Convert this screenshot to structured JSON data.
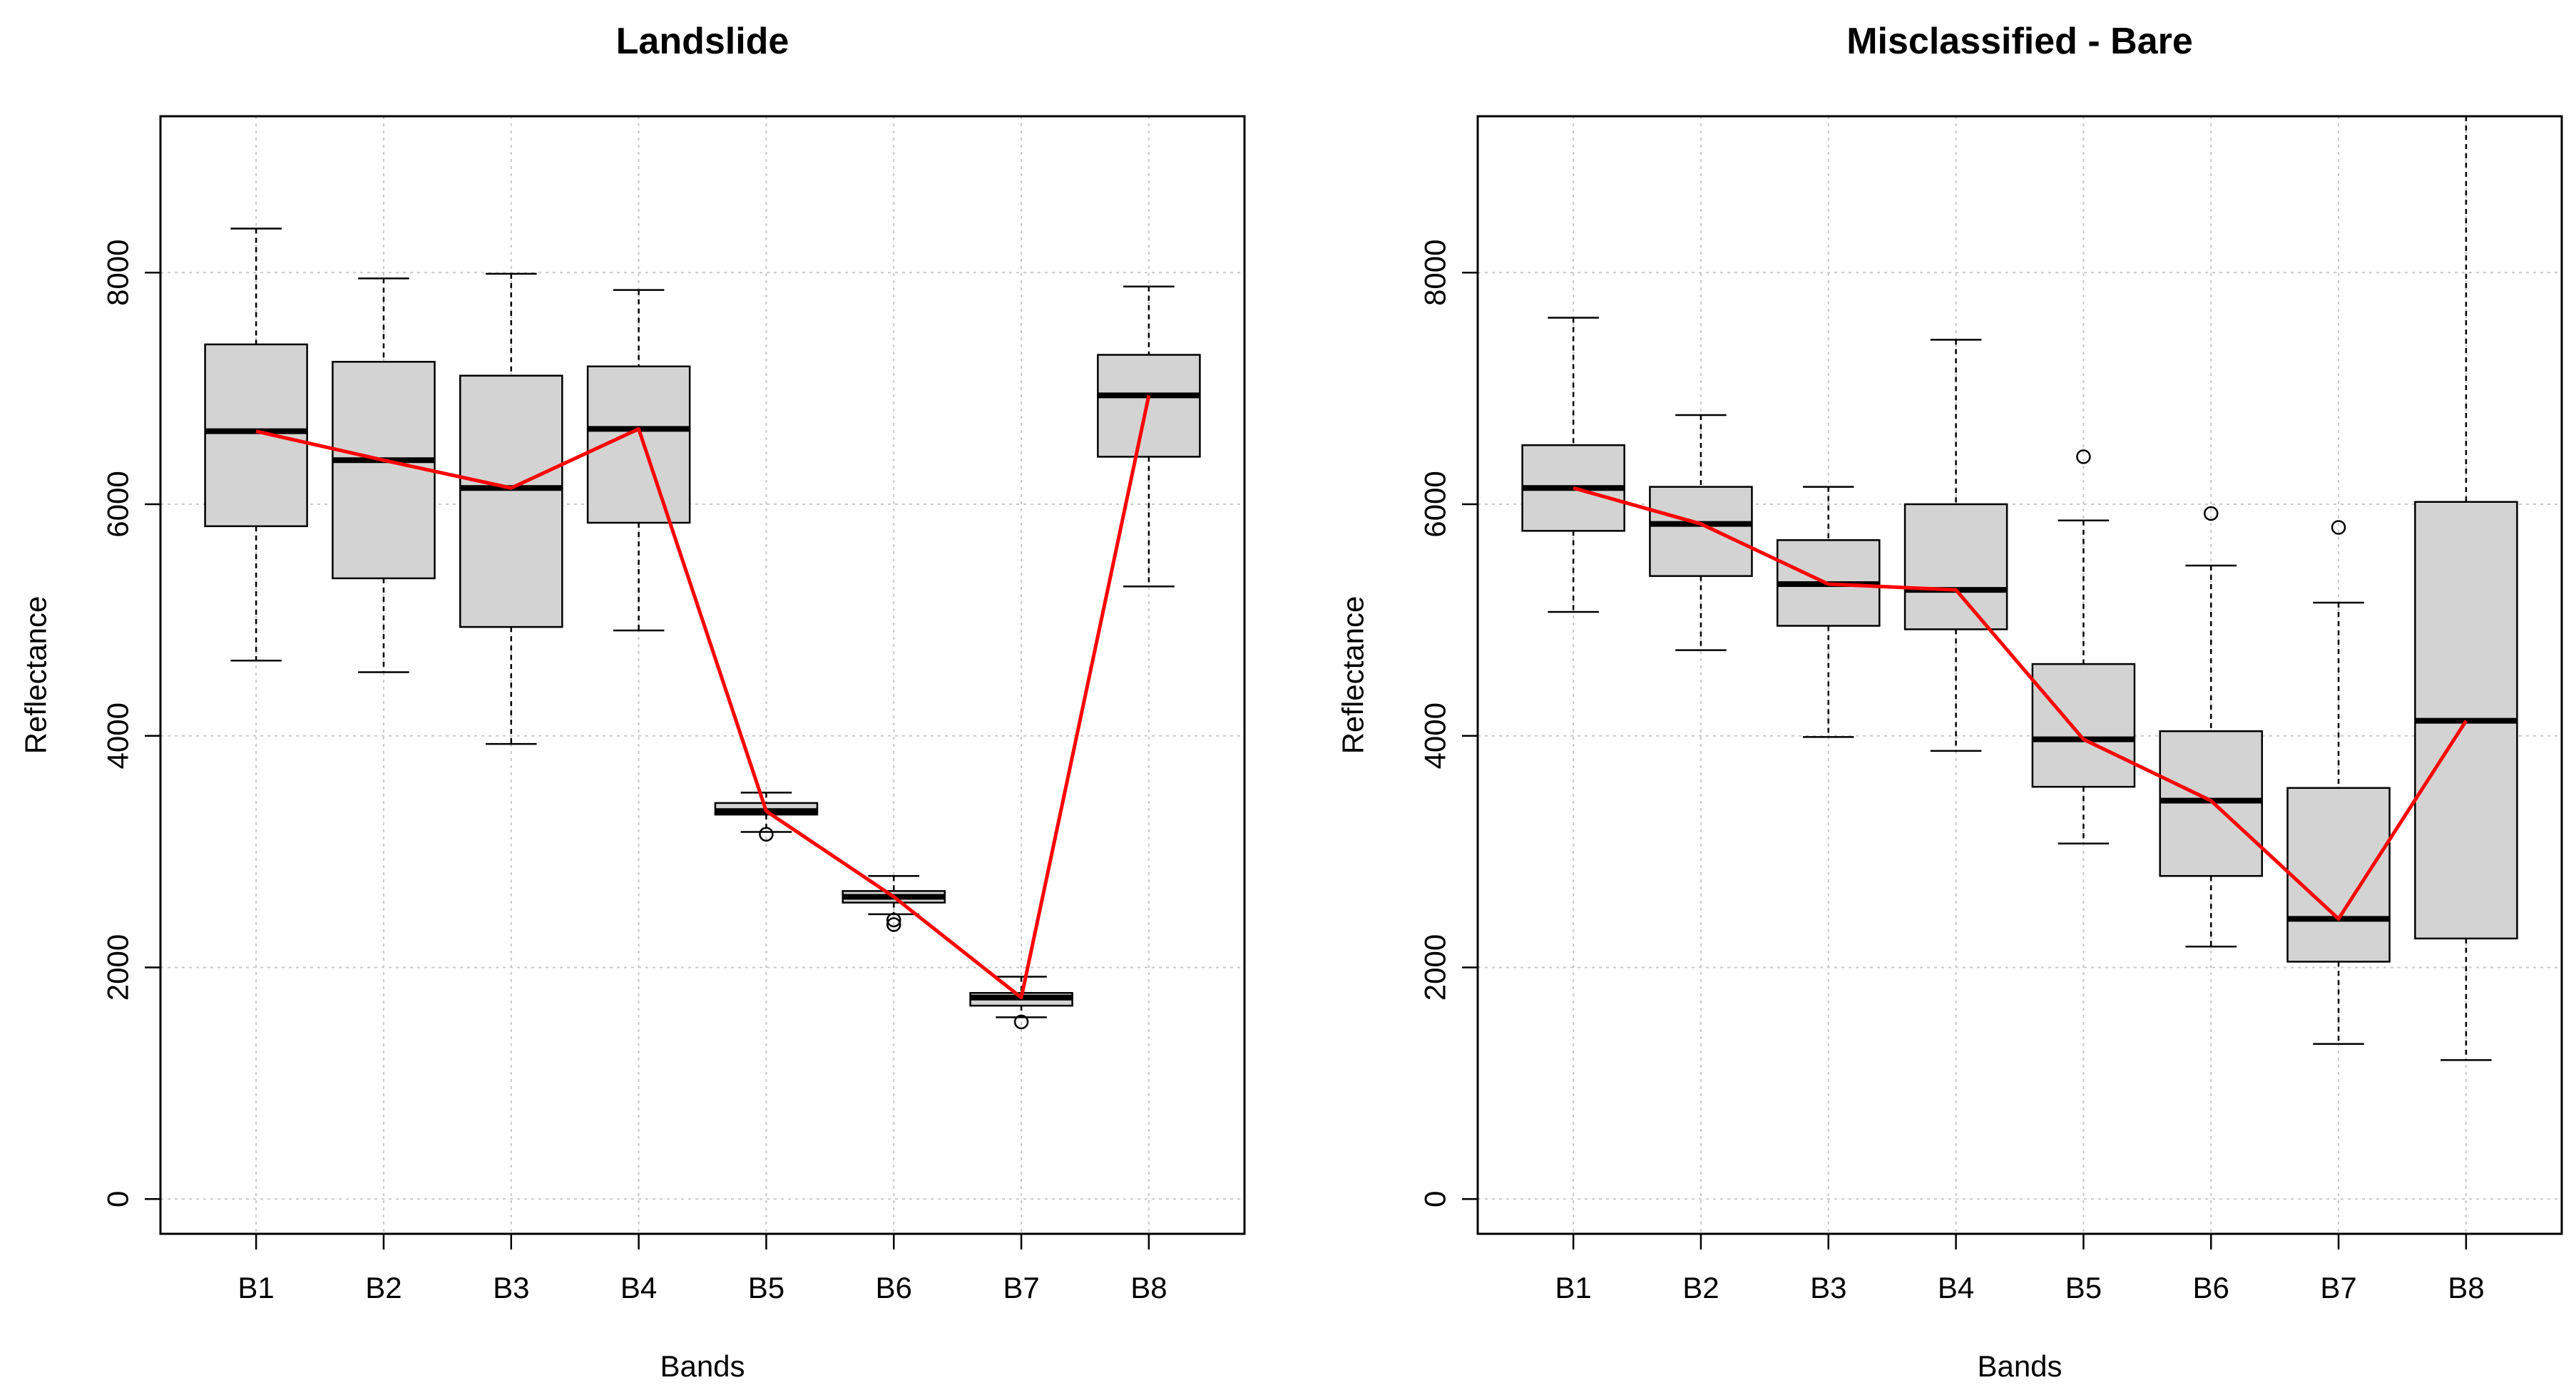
{
  "chart_data": [
    {
      "type": "boxplot",
      "title": "Landslide",
      "xlabel": "Bands",
      "ylabel": "Reflectance",
      "ylim": [
        -300,
        9350
      ],
      "yticks": [
        0,
        2000,
        4000,
        6000,
        8000
      ],
      "grid": true,
      "categories": [
        "B1",
        "B2",
        "B3",
        "B4",
        "B5",
        "B6",
        "B7",
        "B8"
      ],
      "boxes": [
        {
          "min": 4650,
          "q1": 5810,
          "median": 6630,
          "q3": 7380,
          "max": 8380,
          "outliers": []
        },
        {
          "min": 4550,
          "q1": 5360,
          "median": 6380,
          "q3": 7230,
          "max": 7950,
          "outliers": []
        },
        {
          "min": 3930,
          "q1": 4940,
          "median": 6140,
          "q3": 7110,
          "max": 7990,
          "outliers": []
        },
        {
          "min": 4910,
          "q1": 5840,
          "median": 6650,
          "q3": 7190,
          "max": 7850,
          "outliers": []
        },
        {
          "min": 3170,
          "q1": 3320,
          "median": 3350,
          "q3": 3420,
          "max": 3510,
          "outliers": [
            3150
          ]
        },
        {
          "min": 2460,
          "q1": 2560,
          "median": 2610,
          "q3": 2660,
          "max": 2790,
          "outliers": [
            2410,
            2370
          ]
        },
        {
          "min": 1570,
          "q1": 1670,
          "median": 1740,
          "q3": 1780,
          "max": 1920,
          "outliers": [
            1530
          ]
        },
        {
          "min": 5290,
          "q1": 6410,
          "median": 6940,
          "q3": 7290,
          "max": 7880,
          "outliers": []
        }
      ],
      "series": [
        {
          "name": "median line",
          "color": "#ff0000",
          "values": [
            6630,
            6380,
            6140,
            6650,
            3350,
            2610,
            1740,
            6940
          ]
        }
      ]
    },
    {
      "type": "boxplot",
      "title": "Misclassified - Bare",
      "xlabel": "Bands",
      "ylabel": "Reflectance",
      "ylim": [
        -300,
        9350
      ],
      "yticks": [
        0,
        2000,
        4000,
        6000,
        8000
      ],
      "grid": true,
      "categories": [
        "B1",
        "B2",
        "B3",
        "B4",
        "B5",
        "B6",
        "B7",
        "B8"
      ],
      "boxes": [
        {
          "min": 5070,
          "q1": 5770,
          "median": 6140,
          "q3": 6510,
          "max": 7610,
          "outliers": []
        },
        {
          "min": 4740,
          "q1": 5380,
          "median": 5830,
          "q3": 6150,
          "max": 6770,
          "outliers": []
        },
        {
          "min": 3990,
          "q1": 4950,
          "median": 5310,
          "q3": 5690,
          "max": 6150,
          "outliers": []
        },
        {
          "min": 3870,
          "q1": 4920,
          "median": 5260,
          "q3": 6000,
          "max": 7420,
          "outliers": []
        },
        {
          "min": 3070,
          "q1": 3560,
          "median": 3970,
          "q3": 4620,
          "max": 5860,
          "outliers": [
            6410
          ]
        },
        {
          "min": 2180,
          "q1": 2790,
          "median": 3440,
          "q3": 4040,
          "max": 5470,
          "outliers": [
            5920
          ]
        },
        {
          "min": 1340,
          "q1": 2050,
          "median": 2420,
          "q3": 3550,
          "max": 5150,
          "outliers": [
            5800
          ]
        },
        {
          "min": 1200,
          "q1": 2250,
          "median": 4130,
          "q3": 6020,
          "max": 9350,
          "outliers": []
        }
      ],
      "series": [
        {
          "name": "median line",
          "color": "#ff0000",
          "values": [
            6140,
            5830,
            5310,
            5260,
            3970,
            3440,
            2420,
            4130
          ]
        }
      ]
    }
  ]
}
